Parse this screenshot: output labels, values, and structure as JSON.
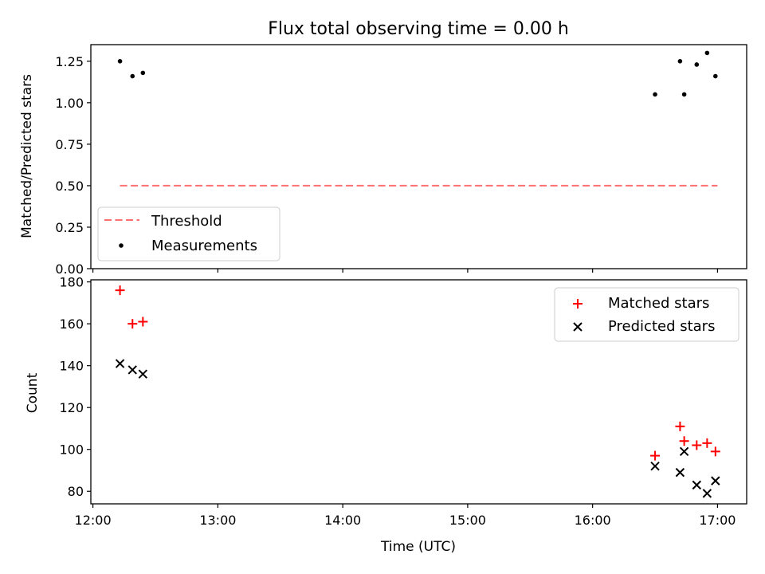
{
  "chart_data": [
    {
      "type": "scatter",
      "title": "Flux total observing time = 0.00 h",
      "xlabel": "",
      "ylabel": "Matched/Predicted stars",
      "ylim": [
        0,
        1.35
      ],
      "yticks": [
        "0.00",
        "0.25",
        "0.50",
        "0.75",
        "1.00",
        "1.25"
      ],
      "xlim": [
        "11:59",
        "17:14"
      ],
      "legend_position": "lower-left",
      "series": [
        {
          "name": "Threshold",
          "kind": "dashed-line",
          "color": "#ff7070",
          "x": [
            "12:13",
            "17:00"
          ],
          "y": [
            0.5,
            0.5
          ]
        },
        {
          "name": "Measurements",
          "kind": "dot",
          "color": "#000000",
          "x": [
            "12:13",
            "12:19",
            "12:24",
            "16:30",
            "16:42",
            "16:44",
            "16:50",
            "16:55",
            "16:59"
          ],
          "y": [
            1.25,
            1.16,
            1.18,
            1.05,
            1.25,
            1.05,
            1.23,
            1.3,
            1.16
          ]
        }
      ]
    },
    {
      "type": "scatter",
      "title": "",
      "xlabel": "Time (UTC)",
      "ylabel": "Count",
      "ylim": [
        74,
        181
      ],
      "yticks": [
        "80",
        "100",
        "120",
        "140",
        "160",
        "180"
      ],
      "xlim": [
        "11:59",
        "17:14"
      ],
      "xticks": [
        "12:00",
        "13:00",
        "14:00",
        "15:00",
        "16:00",
        "17:00"
      ],
      "legend_position": "upper-right",
      "series": [
        {
          "name": "Matched stars",
          "kind": "plus",
          "color": "#ff0000",
          "x": [
            "12:13",
            "12:19",
            "12:24",
            "16:30",
            "16:42",
            "16:44",
            "16:50",
            "16:55",
            "16:59"
          ],
          "y": [
            176,
            160,
            161,
            97,
            111,
            104,
            102,
            103,
            99
          ]
        },
        {
          "name": "Predicted stars",
          "kind": "x",
          "color": "#000000",
          "x": [
            "12:13",
            "12:19",
            "12:24",
            "16:30",
            "16:42",
            "16:44",
            "16:50",
            "16:55",
            "16:59"
          ],
          "y": [
            141,
            138,
            136,
            92,
            89,
            99,
            83,
            79,
            85
          ]
        }
      ]
    }
  ]
}
